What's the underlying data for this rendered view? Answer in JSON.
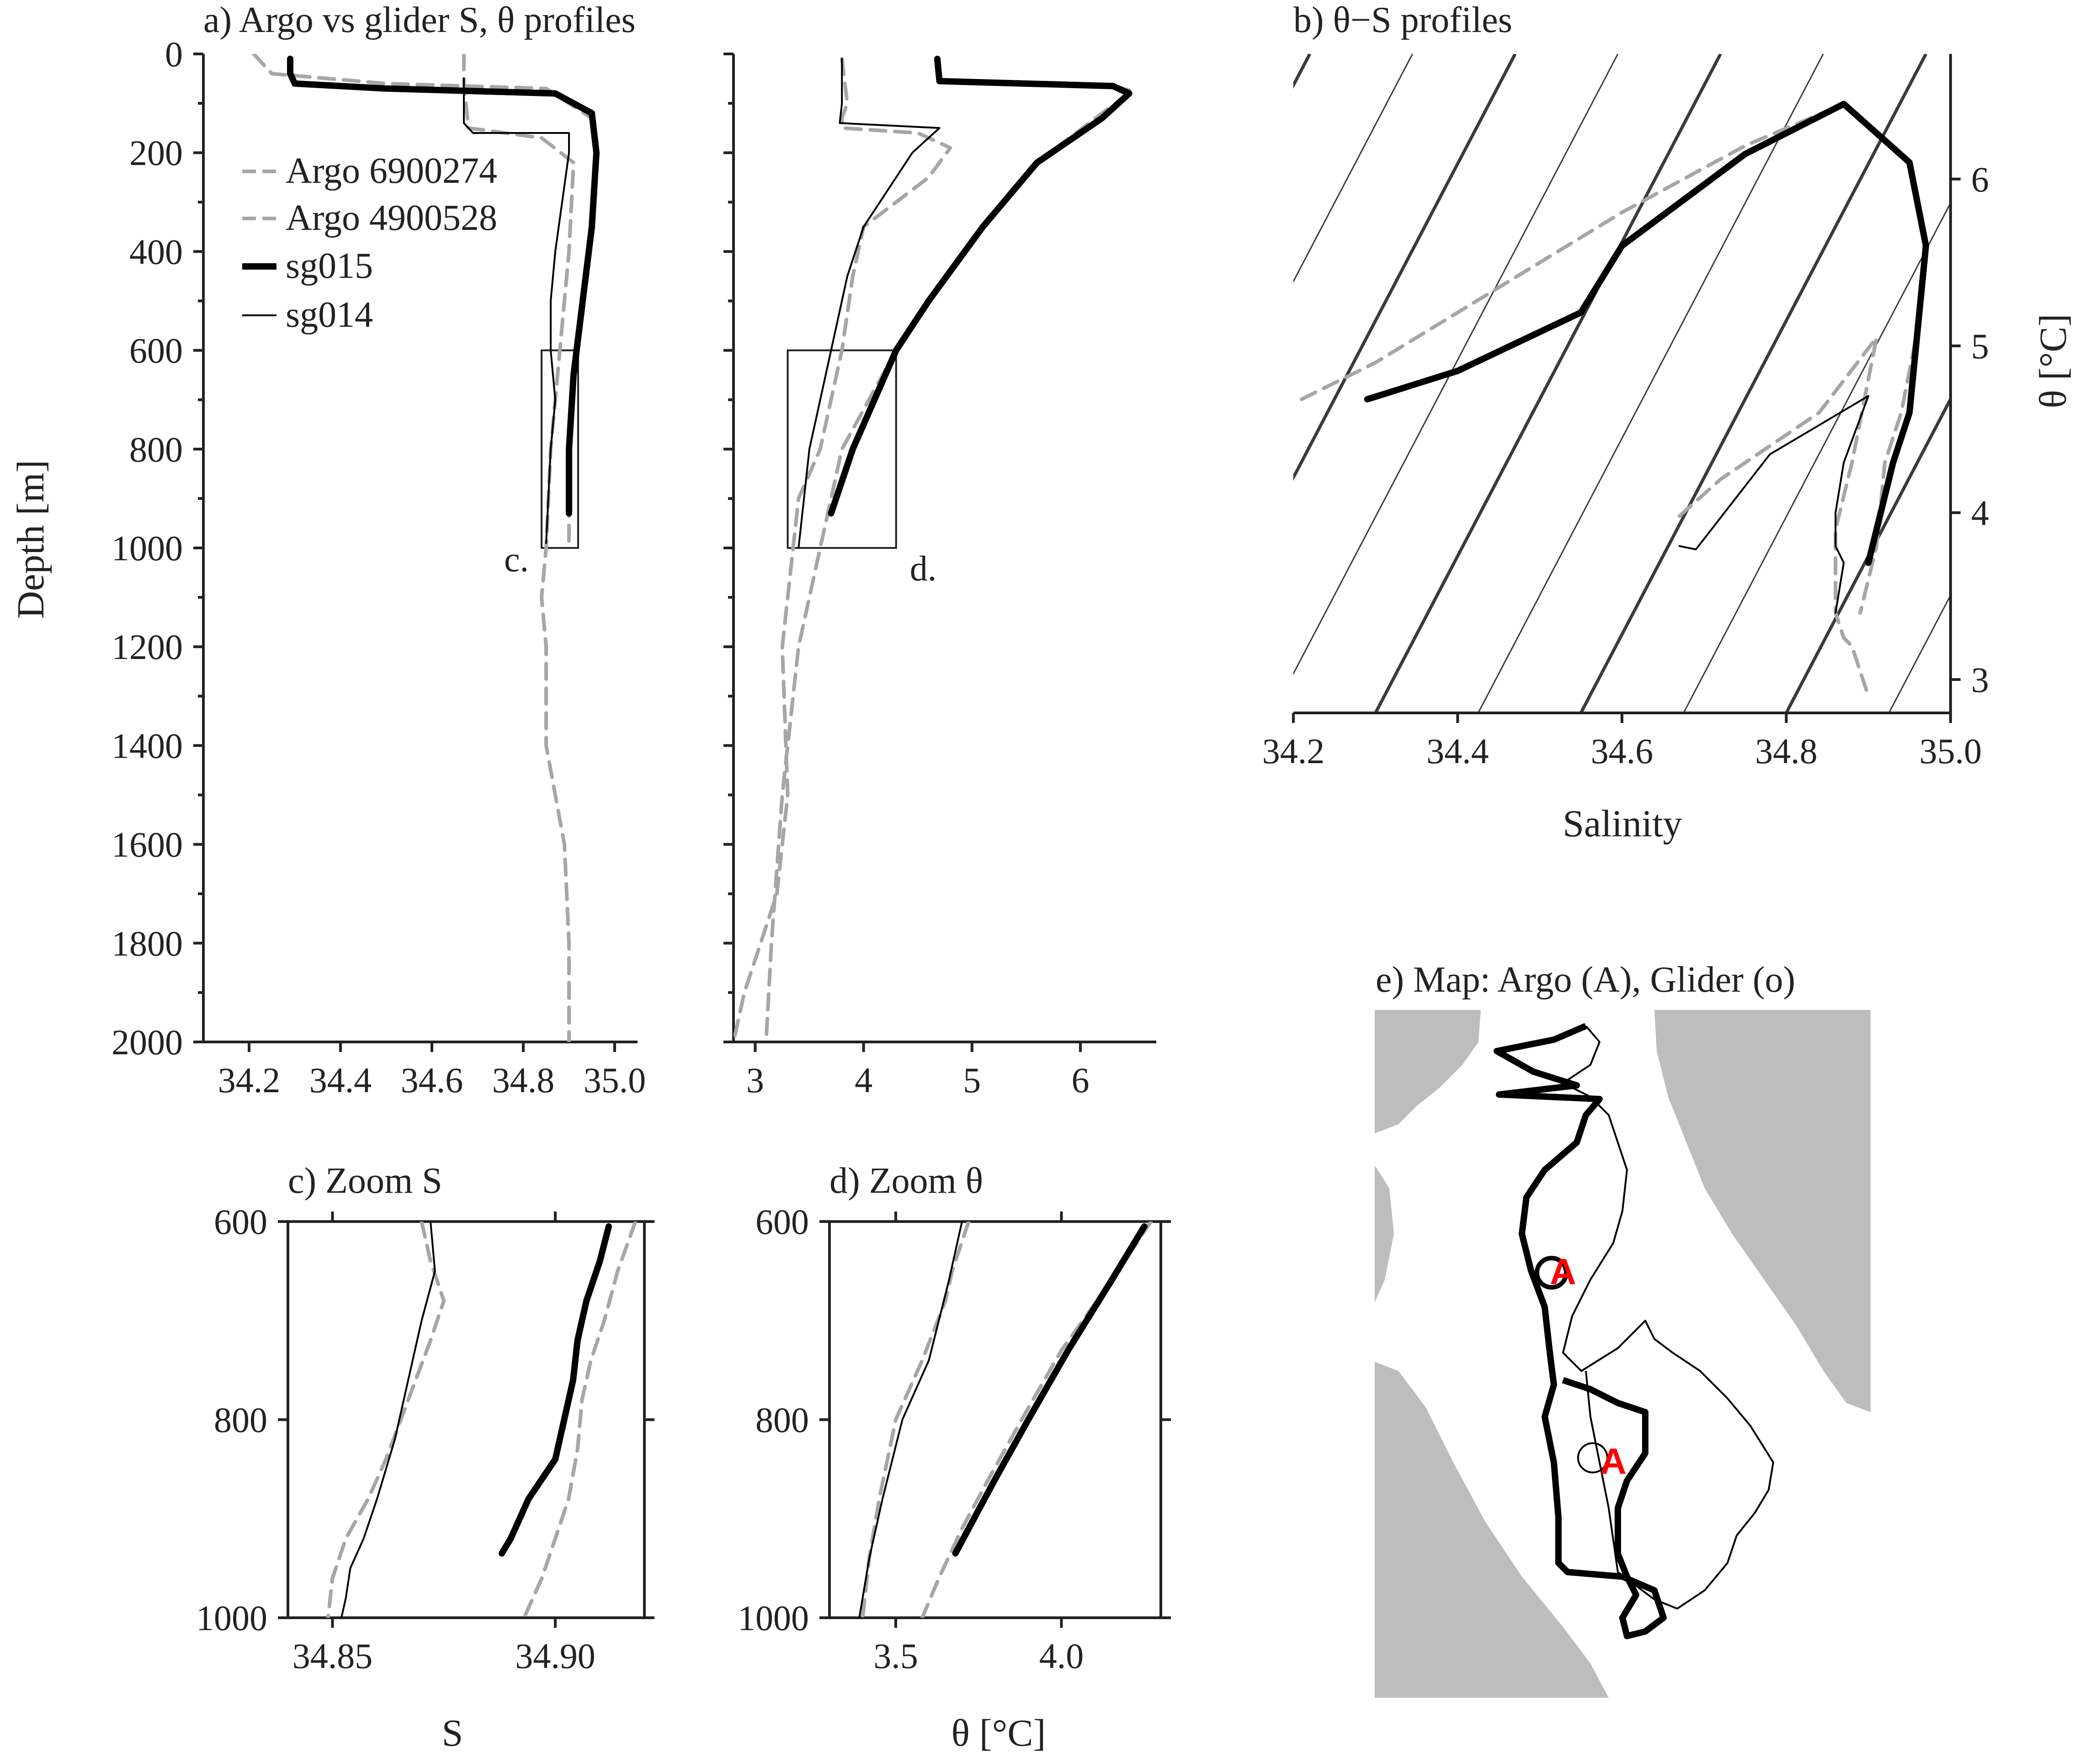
{
  "chart_data": [
    {
      "id": "a_salinity",
      "type": "line",
      "title": "a) Argo vs glider S, θ profiles",
      "xlabel": "",
      "ylabel": "Depth [m]",
      "xlim": [
        34.1,
        35.05
      ],
      "ylim": [
        2000,
        0
      ],
      "xticks": [
        34.2,
        34.4,
        34.6,
        34.8,
        35.0
      ],
      "xticklabels": [
        "34.2",
        "34.4",
        "34.6",
        "34.8",
        "35.0"
      ],
      "yticks": [
        0,
        200,
        400,
        600,
        800,
        1000,
        1200,
        1400,
        1600,
        1800,
        2000
      ],
      "yticklabels": [
        "0",
        "200",
        "400",
        "600",
        "800",
        "1000",
        "1200",
        "1400",
        "1600",
        "1800",
        "2000"
      ],
      "annotation": "c.",
      "box": {
        "x": [
          34.84,
          34.92
        ],
        "y": [
          600,
          1000
        ]
      },
      "series": [
        {
          "name": "Argo 6900274",
          "style": "dashed",
          "color": "#a6a6a6",
          "width": 8,
          "x": [
            34.21,
            34.25,
            34.5,
            34.85,
            34.95,
            34.96,
            34.95,
            34.93,
            34.91,
            34.9,
            34.9
          ],
          "y": [
            0,
            40,
            60,
            70,
            130,
            200,
            350,
            500,
            650,
            800,
            1000
          ]
        },
        {
          "name": "Argo 4900528",
          "style": "dashed",
          "color": "#a6a6a6",
          "width": 8,
          "x": [
            34.67,
            34.67,
            34.68,
            34.84,
            34.91,
            34.9,
            34.89,
            34.88,
            34.87,
            34.86,
            34.85,
            34.84,
            34.85,
            34.85,
            34.87,
            34.89,
            34.9,
            34.9
          ],
          "y": [
            0,
            60,
            150,
            170,
            220,
            400,
            500,
            600,
            700,
            800,
            1000,
            1100,
            1200,
            1400,
            1500,
            1600,
            1800,
            2000
          ]
        },
        {
          "name": "sg015",
          "style": "solid",
          "color": "#000000",
          "width": 14,
          "x": [
            34.29,
            34.29,
            34.3,
            34.5,
            34.87,
            34.95,
            34.96,
            34.95,
            34.93,
            34.91,
            34.9,
            34.9
          ],
          "y": [
            10,
            40,
            60,
            70,
            80,
            120,
            200,
            350,
            500,
            650,
            800,
            930
          ]
        },
        {
          "name": "sg014",
          "style": "solid",
          "color": "#000000",
          "width": 4,
          "x": [
            34.67,
            34.67,
            34.69,
            34.9,
            34.9,
            34.87,
            34.86,
            34.86,
            34.87,
            34.86,
            34.85
          ],
          "y": [
            50,
            140,
            160,
            160,
            200,
            400,
            500,
            600,
            700,
            800,
            990
          ]
        }
      ]
    },
    {
      "id": "a_theta",
      "type": "line",
      "title": "",
      "xlabel": "",
      "ylabel": "",
      "xlim": [
        2.8,
        6.7
      ],
      "ylim": [
        2000,
        0
      ],
      "xticks": [
        3,
        4,
        5,
        6
      ],
      "xticklabels": [
        "3",
        "4",
        "5",
        "6"
      ],
      "yticks": [
        0,
        200,
        400,
        600,
        800,
        1000,
        1200,
        1400,
        1600,
        1800,
        2000
      ],
      "annotation": "d.",
      "box": {
        "x": [
          3.3,
          4.3
        ],
        "y": [
          600,
          1000
        ]
      },
      "series": [
        {
          "name": "Argo 6900274",
          "style": "dashed",
          "color": "#a6a6a6",
          "width": 8,
          "x": [
            4.68,
            4.7,
            6.3,
            6.48,
            6.2,
            5.6,
            5.1,
            4.6,
            4.3,
            3.8,
            3.6,
            3.4,
            3.25,
            3.15,
            3.1
          ],
          "y": [
            10,
            55,
            65,
            75,
            120,
            220,
            350,
            500,
            600,
            800,
            1000,
            1200,
            1500,
            1800,
            2000
          ]
        },
        {
          "name": "Argo 4900528",
          "style": "dashed",
          "color": "#a6a6a6",
          "width": 8,
          "x": [
            3.8,
            3.85,
            3.8,
            3.8,
            4.5,
            4.8,
            4.6,
            4.0,
            3.9,
            3.8,
            3.6,
            3.4,
            3.35,
            3.25,
            3.3,
            3.2,
            2.9,
            2.8
          ],
          "y": [
            10,
            100,
            130,
            150,
            160,
            190,
            250,
            350,
            450,
            600,
            800,
            900,
            1000,
            1200,
            1500,
            1700,
            1900,
            2000
          ]
        },
        {
          "name": "sg015",
          "style": "solid",
          "color": "#000000",
          "width": 14,
          "x": [
            4.68,
            4.7,
            6.3,
            6.45,
            6.2,
            5.6,
            5.1,
            4.6,
            4.3,
            3.9,
            3.7
          ],
          "y": [
            10,
            55,
            65,
            80,
            130,
            220,
            350,
            500,
            600,
            800,
            930
          ]
        },
        {
          "name": "sg014",
          "style": "solid",
          "color": "#000000",
          "width": 4,
          "x": [
            3.8,
            3.8,
            3.78,
            4.7,
            4.45,
            4.0,
            3.85,
            3.7,
            3.5,
            3.45,
            3.4
          ],
          "y": [
            10,
            100,
            140,
            150,
            200,
            350,
            450,
            600,
            800,
            900,
            1000
          ]
        }
      ]
    },
    {
      "id": "b_ts",
      "type": "line",
      "title": "b) θ−S profiles",
      "xlabel": "Salinity",
      "ylabel": "θ [°C]",
      "xlim": [
        34.2,
        35.0
      ],
      "ylim": [
        2.8,
        6.75
      ],
      "xticks": [
        34.2,
        34.4,
        34.6,
        34.8,
        35.0
      ],
      "xticklabels": [
        "34.2",
        "34.4",
        "34.6",
        "34.8",
        "35.0"
      ],
      "yticks": [
        3,
        4,
        5,
        6
      ],
      "yticklabels": [
        "3",
        "4",
        "5",
        "6"
      ],
      "series": [
        {
          "name": "Argo 6900274",
          "style": "dashed",
          "color": "#a6a6a6",
          "width": 8,
          "x": [
            34.21,
            34.3,
            34.45,
            34.6,
            34.75,
            34.87,
            34.95,
            34.97,
            34.96,
            34.94,
            34.92,
            34.91,
            34.9,
            34.89
          ],
          "y": [
            4.68,
            4.9,
            5.35,
            5.8,
            6.2,
            6.45,
            6.1,
            5.6,
            5.1,
            4.6,
            4.3,
            3.8,
            3.6,
            3.4
          ]
        },
        {
          "name": "Argo 4900528",
          "style": "dashed",
          "color": "#a6a6a6",
          "width": 8,
          "x": [
            34.67,
            34.72,
            34.84,
            34.91,
            34.9,
            34.88,
            34.86,
            34.86,
            34.87,
            34.88,
            34.9
          ],
          "y": [
            3.98,
            4.2,
            4.6,
            5.05,
            4.8,
            4.3,
            3.9,
            3.4,
            3.25,
            3.2,
            2.9
          ]
        },
        {
          "name": "sg015",
          "style": "solid",
          "color": "#000000",
          "width": 14,
          "x": [
            34.29,
            34.4,
            34.55,
            34.6,
            34.75,
            34.87,
            34.95,
            34.97,
            34.96,
            34.95,
            34.93,
            34.91,
            34.9
          ],
          "y": [
            4.68,
            4.85,
            5.2,
            5.6,
            6.15,
            6.45,
            6.1,
            5.6,
            5.1,
            4.6,
            4.3,
            3.9,
            3.7
          ]
        },
        {
          "name": "sg014",
          "style": "solid",
          "color": "#000000",
          "width": 4,
          "x": [
            34.67,
            34.69,
            34.78,
            34.9,
            34.87,
            34.86,
            34.86,
            34.87,
            34.86
          ],
          "y": [
            3.8,
            3.78,
            4.35,
            4.7,
            4.3,
            4.0,
            3.8,
            3.7,
            3.4
          ]
        }
      ]
    },
    {
      "id": "c_zoom_s",
      "type": "line",
      "title": "c) Zoom S",
      "xlabel": "S",
      "ylabel": "",
      "xlim": [
        34.84,
        34.92
      ],
      "ylim": [
        1000,
        600
      ],
      "xticks": [
        34.85,
        34.9
      ],
      "xticklabels": [
        "34.85",
        "34.90"
      ],
      "yticks": [
        600,
        800,
        1000
      ],
      "yticklabels": [
        "600",
        "800",
        "1000"
      ],
      "series": [
        {
          "name": "Argo 6900274",
          "style": "dashed",
          "color": "#a6a6a6",
          "width": 8,
          "x": [
            34.918,
            34.914,
            34.911,
            34.908,
            34.906,
            34.905,
            34.903,
            34.9,
            34.897,
            34.893
          ],
          "y": [
            600,
            650,
            700,
            740,
            780,
            830,
            880,
            920,
            960,
            1000
          ]
        },
        {
          "name": "Argo 4900528",
          "style": "dashed",
          "color": "#a6a6a6",
          "width": 8,
          "x": [
            34.87,
            34.872,
            34.875,
            34.872,
            34.867,
            34.862,
            34.858,
            34.853,
            34.85,
            34.849
          ],
          "y": [
            600,
            640,
            680,
            720,
            780,
            840,
            880,
            920,
            960,
            1000
          ]
        },
        {
          "name": "sg015",
          "style": "solid",
          "color": "#000000",
          "width": 14,
          "x": [
            34.912,
            34.91,
            34.907,
            34.905,
            34.904,
            34.902,
            34.9,
            34.897,
            34.894,
            34.892,
            34.89,
            34.888
          ],
          "y": [
            605,
            640,
            680,
            720,
            760,
            800,
            840,
            860,
            880,
            900,
            920,
            935
          ]
        },
        {
          "name": "sg014",
          "style": "solid",
          "color": "#000000",
          "width": 4,
          "x": [
            34.872,
            34.873,
            34.87,
            34.867,
            34.864,
            34.86,
            34.857,
            34.854,
            34.853,
            34.852
          ],
          "y": [
            600,
            650,
            700,
            760,
            820,
            880,
            920,
            950,
            980,
            1000
          ]
        }
      ]
    },
    {
      "id": "d_zoom_theta",
      "type": "line",
      "title": "d) Zoom θ",
      "xlabel": "θ [°C]",
      "ylabel": "",
      "xlim": [
        3.3,
        4.3
      ],
      "ylim": [
        1000,
        600
      ],
      "xticks": [
        3.5,
        4.0
      ],
      "xticklabels": [
        "3.5",
        "4.0"
      ],
      "yticks": [
        600,
        800,
        1000
      ],
      "yticklabels": [
        "600",
        "800",
        "1000"
      ],
      "series": [
        {
          "name": "Argo 6900274",
          "style": "dashed",
          "color": "#a6a6a6",
          "width": 8,
          "x": [
            4.27,
            4.15,
            4.0,
            3.88,
            3.78,
            3.7,
            3.63,
            3.58
          ],
          "y": [
            600,
            660,
            730,
            800,
            860,
            910,
            960,
            1000
          ]
        },
        {
          "name": "Argo 4900528",
          "style": "dashed",
          "color": "#a6a6a6",
          "width": 8,
          "x": [
            3.72,
            3.67,
            3.65,
            3.58,
            3.5,
            3.45,
            3.42,
            3.4
          ],
          "y": [
            600,
            650,
            680,
            740,
            800,
            880,
            940,
            1000
          ]
        },
        {
          "name": "sg015",
          "style": "solid",
          "color": "#000000",
          "width": 14,
          "x": [
            4.25,
            4.15,
            4.02,
            3.9,
            3.8,
            3.72,
            3.68
          ],
          "y": [
            605,
            660,
            730,
            800,
            860,
            910,
            935
          ]
        },
        {
          "name": "sg014",
          "style": "solid",
          "color": "#000000",
          "width": 4,
          "x": [
            3.7,
            3.66,
            3.6,
            3.52,
            3.46,
            3.42,
            3.39
          ],
          "y": [
            600,
            660,
            740,
            800,
            880,
            940,
            1000
          ]
        }
      ]
    }
  ],
  "legend": {
    "placement": "upper-left of panel a",
    "entries": [
      {
        "name": "Argo 6900274",
        "style": "dashed",
        "color": "#a6a6a6",
        "label": "Argo 6900274"
      },
      {
        "name": "Argo 4900528",
        "style": "dashed",
        "color": "#a6a6a6",
        "label": "Argo 4900528"
      },
      {
        "name": "sg015",
        "style": "solid",
        "color": "#000000",
        "width": 14,
        "label": "sg015"
      },
      {
        "name": "sg014",
        "style": "solid",
        "color": "#000000",
        "width": 4,
        "label": "sg014"
      }
    ]
  },
  "map": {
    "title": "e) Map: Argo (A), Glider (o)",
    "argo_marker_label": "A",
    "argo_marker_color": "#ff0000",
    "land_color": "#bdbdbd"
  },
  "colors": {
    "argo": "#a6a6a6",
    "glider": "#000000",
    "isopycnal": "#3a3a3a"
  }
}
